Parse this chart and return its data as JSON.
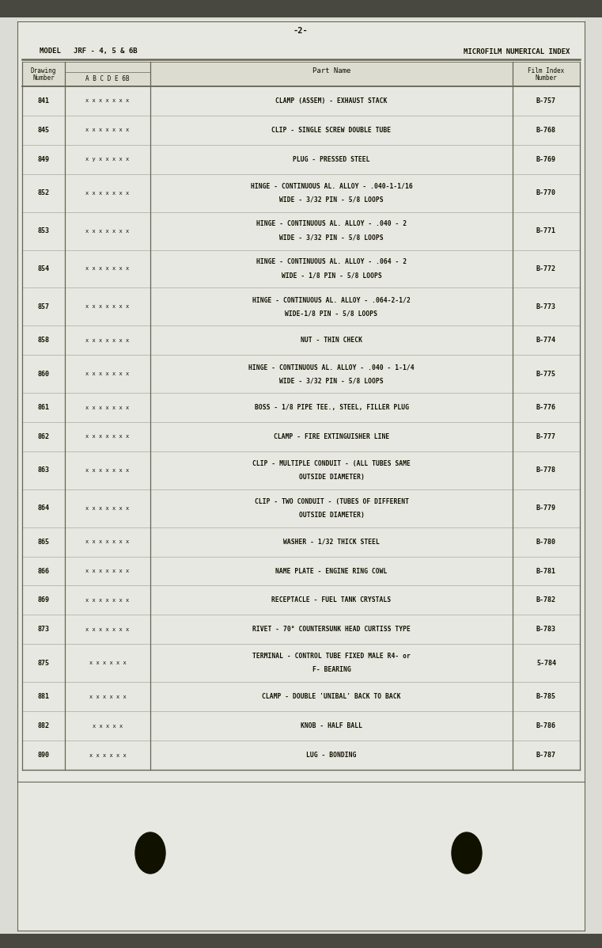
{
  "page_number": "-2-",
  "model_text": "MODEL   JRF - 4, 5 & 6B",
  "index_title": "MICROFILM NUMERICAL INDEX",
  "rows": [
    {
      "num": "841",
      "marks": "x x x x x x x",
      "part": "CLAMP (ASSEM) - EXHAUST STACK",
      "film": "B-757",
      "twoline": false
    },
    {
      "num": "845",
      "marks": "x x x x x x x",
      "part": "CLIP - SINGLE SCREW DOUBLE TUBE",
      "film": "B-768",
      "twoline": false
    },
    {
      "num": "849",
      "marks": "x y x x x x x",
      "part": "PLUG - PRESSED STEEL",
      "film": "B-769",
      "twoline": false
    },
    {
      "num": "852",
      "marks": "x x x x x x x",
      "part1": "HINGE - CONTINUOUS AL. ALLOY - .040-1-1/16",
      "part2": "WIDE - 3/32 PIN - 5/8 LOOPS",
      "film": "B-770",
      "twoline": true
    },
    {
      "num": "853",
      "marks": "x x x x x x x",
      "part1": "HINGE - CONTINUOUS AL. ALLOY - .040 - 2",
      "part2": "WIDE - 3/32 PIN - 5/8 LOOPS",
      "film": "B-771",
      "twoline": true
    },
    {
      "num": "854",
      "marks": "x x x x x x x",
      "part1": "HINGE - CONTINUOUS AL. ALLOY - .064 - 2",
      "part2": "WIDE - 1/8 PIN - 5/8 LOOPS",
      "film": "B-772",
      "twoline": true
    },
    {
      "num": "857",
      "marks": "x x x x x x x",
      "part1": "HINGE - CONTINUOUS AL. ALLOY - .064-2-1/2",
      "part2": "WIDE-1/8 PIN - 5/8 LOOPS",
      "film": "B-773",
      "twoline": true
    },
    {
      "num": "858",
      "marks": "x x x x x x x",
      "part": "NUT - THIN CHECK",
      "film": "B-774",
      "twoline": false
    },
    {
      "num": "860",
      "marks": "x x x x x x x",
      "part1": "HINGE - CONTINUOUS AL. ALLOY - .040 - 1-1/4",
      "part2": "WIDE - 3/32 PIN - 5/8 LOOPS",
      "film": "B-775",
      "twoline": true
    },
    {
      "num": "861",
      "marks": "x x x x x x x",
      "part": "BOSS - 1/8 PIPE TEE., STEEL, FILLER PLUG",
      "film": "B-776",
      "twoline": false
    },
    {
      "num": "862",
      "marks": "x x x x x x x",
      "part": "CLAMP - FIRE EXTINGUISHER LINE",
      "film": "B-777",
      "twoline": false
    },
    {
      "num": "863",
      "marks": "x x x x x x x",
      "part1": "CLIP - MULTIPLE CONDUIT - (ALL TUBES SAME",
      "part2": "OUTSIDE DIAMETER)",
      "film": "B-778",
      "twoline": true
    },
    {
      "num": "864",
      "marks": "x x x x x x x",
      "part1": "CLIP - TWO CONDUIT - (TUBES OF DIFFERENT",
      "part2": "OUTSIDE DIAMETER)",
      "film": "B-779",
      "twoline": true
    },
    {
      "num": "865",
      "marks": "x x x x x x x",
      "part": "WASHER - 1/32 THICK STEEL",
      "film": "B-780",
      "twoline": false
    },
    {
      "num": "866",
      "marks": "x x x x x x x",
      "part": "NAME PLATE - ENGINE RING COWL",
      "film": "B-781",
      "twoline": false
    },
    {
      "num": "869",
      "marks": "x x x x x x x",
      "part": "RECEPTACLE - FUEL TANK CRYSTALS",
      "film": "B-782",
      "twoline": false
    },
    {
      "num": "873",
      "marks": "x x x x x x x",
      "part": "RIVET - 70° COUNTERSUNK HEAD CURTISS TYPE",
      "film": "B-783",
      "twoline": false
    },
    {
      "num": "875",
      "marks": "x x x x x x",
      "part1": "TERMINAL - CONTROL TUBE FIXED MALE R4- or",
      "part2": "F- BEARING",
      "film": "5-784",
      "twoline": true
    },
    {
      "num": "881",
      "marks": "x x x x x x",
      "part": "CLAMP - DOUBLE 'UNIBAL' BACK TO BACK",
      "film": "B-785",
      "twoline": false
    },
    {
      "num": "882",
      "marks": "x x x x x",
      "part": "KNOB - HALF BALL",
      "film": "B-786",
      "twoline": false
    },
    {
      "num": "890",
      "marks": "x x x x x x",
      "part": "LUG - BONDING",
      "film": "B-787",
      "twoline": false
    }
  ],
  "outer_bg": "#b0b0aa",
  "inner_bg": "#dcdcd6",
  "paper_bg": "#e8e8e2",
  "table_line_color": "#666655",
  "text_dark": "#111100",
  "circle_color": "#111100",
  "top_band_color": "#484840",
  "bottom_band_color": "#484840"
}
